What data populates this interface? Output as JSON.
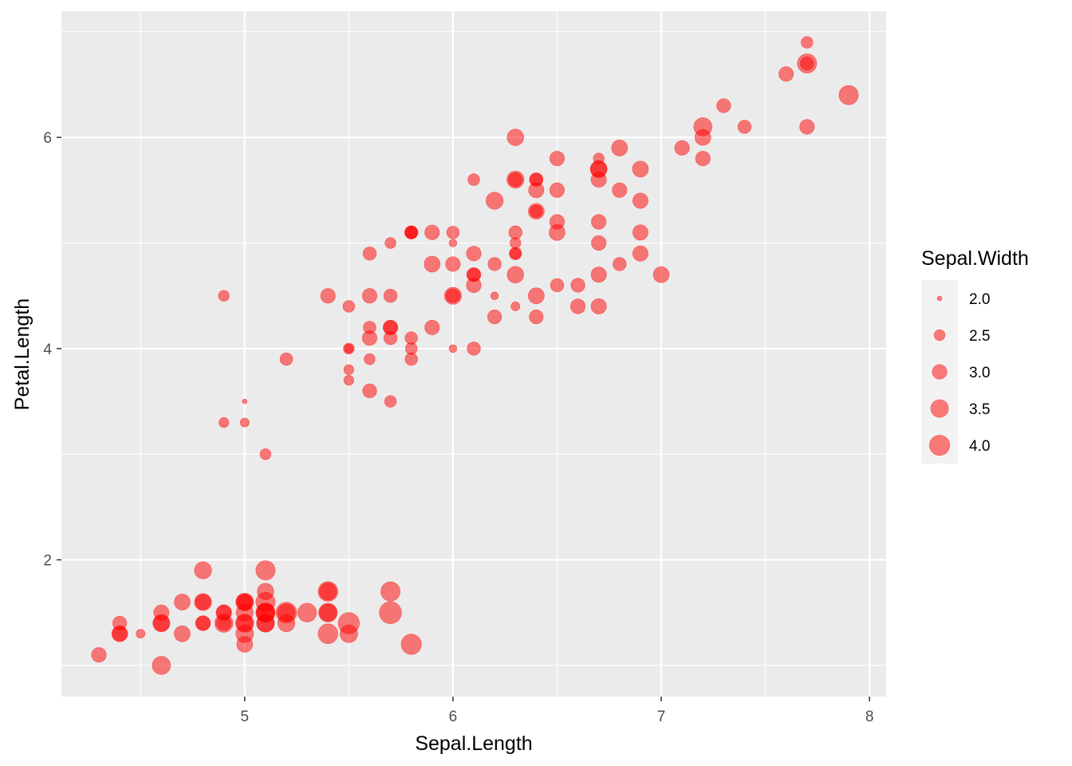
{
  "chart_data": {
    "type": "scatter",
    "title": "",
    "xlabel": "Sepal.Length",
    "ylabel": "Petal.Length",
    "size_variable": "Sepal.Width",
    "point_color": "#FF0000",
    "point_alpha": 0.5,
    "panel_background": "#EBEBEB",
    "grid": true,
    "legend_placement": "right",
    "xlim": [
      4.12,
      8.08
    ],
    "ylim": [
      0.705,
      7.195
    ],
    "x_ticks": [
      5,
      6,
      7,
      8
    ],
    "x_tick_labels": [
      "5",
      "6",
      "7",
      "8"
    ],
    "y_ticks": [
      2,
      4,
      6
    ],
    "y_tick_labels": [
      "2",
      "4",
      "6"
    ],
    "size_range": [
      2.0,
      4.4
    ],
    "legend": {
      "title": "Sepal.Width",
      "breaks": [
        2.0,
        2.5,
        3.0,
        3.5,
        4.0
      ],
      "labels": [
        "2.0",
        "2.5",
        "3.0",
        "3.5",
        "4.0"
      ]
    },
    "points": [
      {
        "x": 5.1,
        "y": 1.4,
        "size": 3.5
      },
      {
        "x": 4.9,
        "y": 1.4,
        "size": 3.0
      },
      {
        "x": 4.7,
        "y": 1.3,
        "size": 3.2
      },
      {
        "x": 4.6,
        "y": 1.5,
        "size": 3.1
      },
      {
        "x": 5.0,
        "y": 1.4,
        "size": 3.6
      },
      {
        "x": 5.4,
        "y": 1.7,
        "size": 3.9
      },
      {
        "x": 4.6,
        "y": 1.4,
        "size": 3.4
      },
      {
        "x": 5.0,
        "y": 1.5,
        "size": 3.4
      },
      {
        "x": 4.4,
        "y": 1.4,
        "size": 2.9
      },
      {
        "x": 4.9,
        "y": 1.5,
        "size": 3.1
      },
      {
        "x": 5.4,
        "y": 1.5,
        "size": 3.7
      },
      {
        "x": 4.8,
        "y": 1.6,
        "size": 3.4
      },
      {
        "x": 4.8,
        "y": 1.4,
        "size": 3.0
      },
      {
        "x": 4.3,
        "y": 1.1,
        "size": 3.0
      },
      {
        "x": 5.8,
        "y": 1.2,
        "size": 4.0
      },
      {
        "x": 5.7,
        "y": 1.5,
        "size": 4.4
      },
      {
        "x": 5.4,
        "y": 1.3,
        "size": 3.9
      },
      {
        "x": 5.1,
        "y": 1.4,
        "size": 3.5
      },
      {
        "x": 5.7,
        "y": 1.7,
        "size": 3.8
      },
      {
        "x": 5.1,
        "y": 1.5,
        "size": 3.8
      },
      {
        "x": 5.4,
        "y": 1.7,
        "size": 3.4
      },
      {
        "x": 5.1,
        "y": 1.5,
        "size": 3.7
      },
      {
        "x": 4.6,
        "y": 1.0,
        "size": 3.6
      },
      {
        "x": 5.1,
        "y": 1.7,
        "size": 3.3
      },
      {
        "x": 4.8,
        "y": 1.9,
        "size": 3.4
      },
      {
        "x": 5.0,
        "y": 1.6,
        "size": 3.0
      },
      {
        "x": 5.0,
        "y": 1.6,
        "size": 3.4
      },
      {
        "x": 5.2,
        "y": 1.5,
        "size": 3.5
      },
      {
        "x": 5.2,
        "y": 1.4,
        "size": 3.4
      },
      {
        "x": 4.7,
        "y": 1.6,
        "size": 3.2
      },
      {
        "x": 4.8,
        "y": 1.6,
        "size": 3.1
      },
      {
        "x": 5.4,
        "y": 1.5,
        "size": 3.4
      },
      {
        "x": 5.2,
        "y": 1.5,
        "size": 4.1
      },
      {
        "x": 5.5,
        "y": 1.4,
        "size": 4.2
      },
      {
        "x": 4.9,
        "y": 1.5,
        "size": 3.1
      },
      {
        "x": 5.0,
        "y": 1.2,
        "size": 3.2
      },
      {
        "x": 5.5,
        "y": 1.3,
        "size": 3.5
      },
      {
        "x": 4.9,
        "y": 1.4,
        "size": 3.6
      },
      {
        "x": 4.4,
        "y": 1.3,
        "size": 3.0
      },
      {
        "x": 5.1,
        "y": 1.5,
        "size": 3.4
      },
      {
        "x": 5.0,
        "y": 1.3,
        "size": 3.5
      },
      {
        "x": 4.5,
        "y": 1.3,
        "size": 2.3
      },
      {
        "x": 4.4,
        "y": 1.3,
        "size": 3.2
      },
      {
        "x": 5.0,
        "y": 1.6,
        "size": 3.5
      },
      {
        "x": 5.1,
        "y": 1.9,
        "size": 3.8
      },
      {
        "x": 4.8,
        "y": 1.4,
        "size": 3.0
      },
      {
        "x": 5.1,
        "y": 1.6,
        "size": 3.8
      },
      {
        "x": 4.6,
        "y": 1.4,
        "size": 3.2
      },
      {
        "x": 5.3,
        "y": 1.5,
        "size": 3.7
      },
      {
        "x": 5.0,
        "y": 1.4,
        "size": 3.3
      },
      {
        "x": 7.0,
        "y": 4.7,
        "size": 3.2
      },
      {
        "x": 6.4,
        "y": 4.5,
        "size": 3.2
      },
      {
        "x": 6.9,
        "y": 4.9,
        "size": 3.1
      },
      {
        "x": 5.5,
        "y": 4.0,
        "size": 2.3
      },
      {
        "x": 6.5,
        "y": 4.6,
        "size": 2.8
      },
      {
        "x": 5.7,
        "y": 4.5,
        "size": 2.8
      },
      {
        "x": 6.3,
        "y": 4.7,
        "size": 3.3
      },
      {
        "x": 4.9,
        "y": 3.3,
        "size": 2.4
      },
      {
        "x": 6.6,
        "y": 4.6,
        "size": 2.9
      },
      {
        "x": 5.2,
        "y": 3.9,
        "size": 2.7
      },
      {
        "x": 5.0,
        "y": 3.5,
        "size": 2.0
      },
      {
        "x": 5.9,
        "y": 4.2,
        "size": 3.0
      },
      {
        "x": 6.0,
        "y": 4.0,
        "size": 2.2
      },
      {
        "x": 6.1,
        "y": 4.7,
        "size": 2.9
      },
      {
        "x": 5.6,
        "y": 3.6,
        "size": 2.9
      },
      {
        "x": 6.7,
        "y": 4.4,
        "size": 3.1
      },
      {
        "x": 5.6,
        "y": 4.5,
        "size": 3.0
      },
      {
        "x": 5.8,
        "y": 4.1,
        "size": 2.7
      },
      {
        "x": 6.2,
        "y": 4.5,
        "size": 2.2
      },
      {
        "x": 5.6,
        "y": 3.9,
        "size": 2.5
      },
      {
        "x": 5.9,
        "y": 4.8,
        "size": 3.2
      },
      {
        "x": 6.1,
        "y": 4.0,
        "size": 2.8
      },
      {
        "x": 6.3,
        "y": 4.9,
        "size": 2.5
      },
      {
        "x": 6.1,
        "y": 4.7,
        "size": 2.8
      },
      {
        "x": 6.4,
        "y": 4.3,
        "size": 2.9
      },
      {
        "x": 6.6,
        "y": 4.4,
        "size": 3.0
      },
      {
        "x": 6.8,
        "y": 4.8,
        "size": 2.8
      },
      {
        "x": 6.7,
        "y": 5.0,
        "size": 3.0
      },
      {
        "x": 6.0,
        "y": 4.5,
        "size": 2.9
      },
      {
        "x": 5.7,
        "y": 3.5,
        "size": 2.6
      },
      {
        "x": 5.5,
        "y": 3.8,
        "size": 2.4
      },
      {
        "x": 5.5,
        "y": 3.7,
        "size": 2.4
      },
      {
        "x": 5.8,
        "y": 3.9,
        "size": 2.7
      },
      {
        "x": 6.0,
        "y": 5.1,
        "size": 2.7
      },
      {
        "x": 5.4,
        "y": 4.5,
        "size": 3.0
      },
      {
        "x": 6.0,
        "y": 4.5,
        "size": 3.4
      },
      {
        "x": 6.7,
        "y": 4.7,
        "size": 3.1
      },
      {
        "x": 6.3,
        "y": 4.4,
        "size": 2.3
      },
      {
        "x": 5.6,
        "y": 4.1,
        "size": 3.0
      },
      {
        "x": 5.5,
        "y": 4.0,
        "size": 2.5
      },
      {
        "x": 5.5,
        "y": 4.4,
        "size": 2.6
      },
      {
        "x": 6.1,
        "y": 4.6,
        "size": 3.0
      },
      {
        "x": 5.8,
        "y": 4.0,
        "size": 2.6
      },
      {
        "x": 5.0,
        "y": 3.3,
        "size": 2.3
      },
      {
        "x": 5.6,
        "y": 4.2,
        "size": 2.7
      },
      {
        "x": 5.7,
        "y": 4.2,
        "size": 3.0
      },
      {
        "x": 5.7,
        "y": 4.2,
        "size": 2.9
      },
      {
        "x": 6.2,
        "y": 4.3,
        "size": 2.9
      },
      {
        "x": 5.1,
        "y": 3.0,
        "size": 2.5
      },
      {
        "x": 5.7,
        "y": 4.1,
        "size": 2.8
      },
      {
        "x": 6.3,
        "y": 6.0,
        "size": 3.3
      },
      {
        "x": 5.8,
        "y": 5.1,
        "size": 2.7
      },
      {
        "x": 7.1,
        "y": 5.9,
        "size": 3.0
      },
      {
        "x": 6.3,
        "y": 5.6,
        "size": 2.9
      },
      {
        "x": 6.5,
        "y": 5.8,
        "size": 3.0
      },
      {
        "x": 7.6,
        "y": 6.6,
        "size": 3.0
      },
      {
        "x": 4.9,
        "y": 4.5,
        "size": 2.5
      },
      {
        "x": 7.3,
        "y": 6.3,
        "size": 2.9
      },
      {
        "x": 6.7,
        "y": 5.8,
        "size": 2.5
      },
      {
        "x": 7.2,
        "y": 6.1,
        "size": 3.6
      },
      {
        "x": 6.5,
        "y": 5.1,
        "size": 3.2
      },
      {
        "x": 6.4,
        "y": 5.3,
        "size": 2.7
      },
      {
        "x": 6.8,
        "y": 5.5,
        "size": 3.0
      },
      {
        "x": 5.7,
        "y": 5.0,
        "size": 2.5
      },
      {
        "x": 5.8,
        "y": 5.1,
        "size": 2.8
      },
      {
        "x": 6.4,
        "y": 5.3,
        "size": 3.2
      },
      {
        "x": 6.5,
        "y": 5.5,
        "size": 3.0
      },
      {
        "x": 7.7,
        "y": 6.7,
        "size": 3.8
      },
      {
        "x": 7.7,
        "y": 6.9,
        "size": 2.6
      },
      {
        "x": 6.0,
        "y": 5.0,
        "size": 2.2
      },
      {
        "x": 6.9,
        "y": 5.7,
        "size": 3.2
      },
      {
        "x": 5.6,
        "y": 4.9,
        "size": 2.8
      },
      {
        "x": 7.7,
        "y": 6.7,
        "size": 2.8
      },
      {
        "x": 6.3,
        "y": 4.9,
        "size": 2.7
      },
      {
        "x": 6.7,
        "y": 5.7,
        "size": 3.3
      },
      {
        "x": 7.2,
        "y": 6.0,
        "size": 3.2
      },
      {
        "x": 6.2,
        "y": 4.8,
        "size": 2.8
      },
      {
        "x": 6.1,
        "y": 4.9,
        "size": 3.0
      },
      {
        "x": 6.4,
        "y": 5.6,
        "size": 2.8
      },
      {
        "x": 7.2,
        "y": 5.8,
        "size": 3.0
      },
      {
        "x": 7.4,
        "y": 6.1,
        "size": 2.8
      },
      {
        "x": 7.9,
        "y": 6.4,
        "size": 3.8
      },
      {
        "x": 6.4,
        "y": 5.6,
        "size": 2.8
      },
      {
        "x": 6.3,
        "y": 5.1,
        "size": 2.8
      },
      {
        "x": 6.1,
        "y": 5.6,
        "size": 2.6
      },
      {
        "x": 7.7,
        "y": 6.1,
        "size": 3.0
      },
      {
        "x": 6.3,
        "y": 5.6,
        "size": 3.4
      },
      {
        "x": 6.4,
        "y": 5.5,
        "size": 3.1
      },
      {
        "x": 6.0,
        "y": 4.8,
        "size": 3.0
      },
      {
        "x": 6.9,
        "y": 5.4,
        "size": 3.1
      },
      {
        "x": 6.7,
        "y": 5.6,
        "size": 3.1
      },
      {
        "x": 6.9,
        "y": 5.1,
        "size": 3.1
      },
      {
        "x": 5.8,
        "y": 5.1,
        "size": 2.7
      },
      {
        "x": 6.8,
        "y": 5.9,
        "size": 3.2
      },
      {
        "x": 6.7,
        "y": 5.7,
        "size": 3.3
      },
      {
        "x": 6.7,
        "y": 5.2,
        "size": 3.0
      },
      {
        "x": 6.3,
        "y": 5.0,
        "size": 2.5
      },
      {
        "x": 6.5,
        "y": 5.2,
        "size": 3.0
      },
      {
        "x": 6.2,
        "y": 5.4,
        "size": 3.4
      },
      {
        "x": 5.9,
        "y": 5.1,
        "size": 3.0
      }
    ]
  }
}
